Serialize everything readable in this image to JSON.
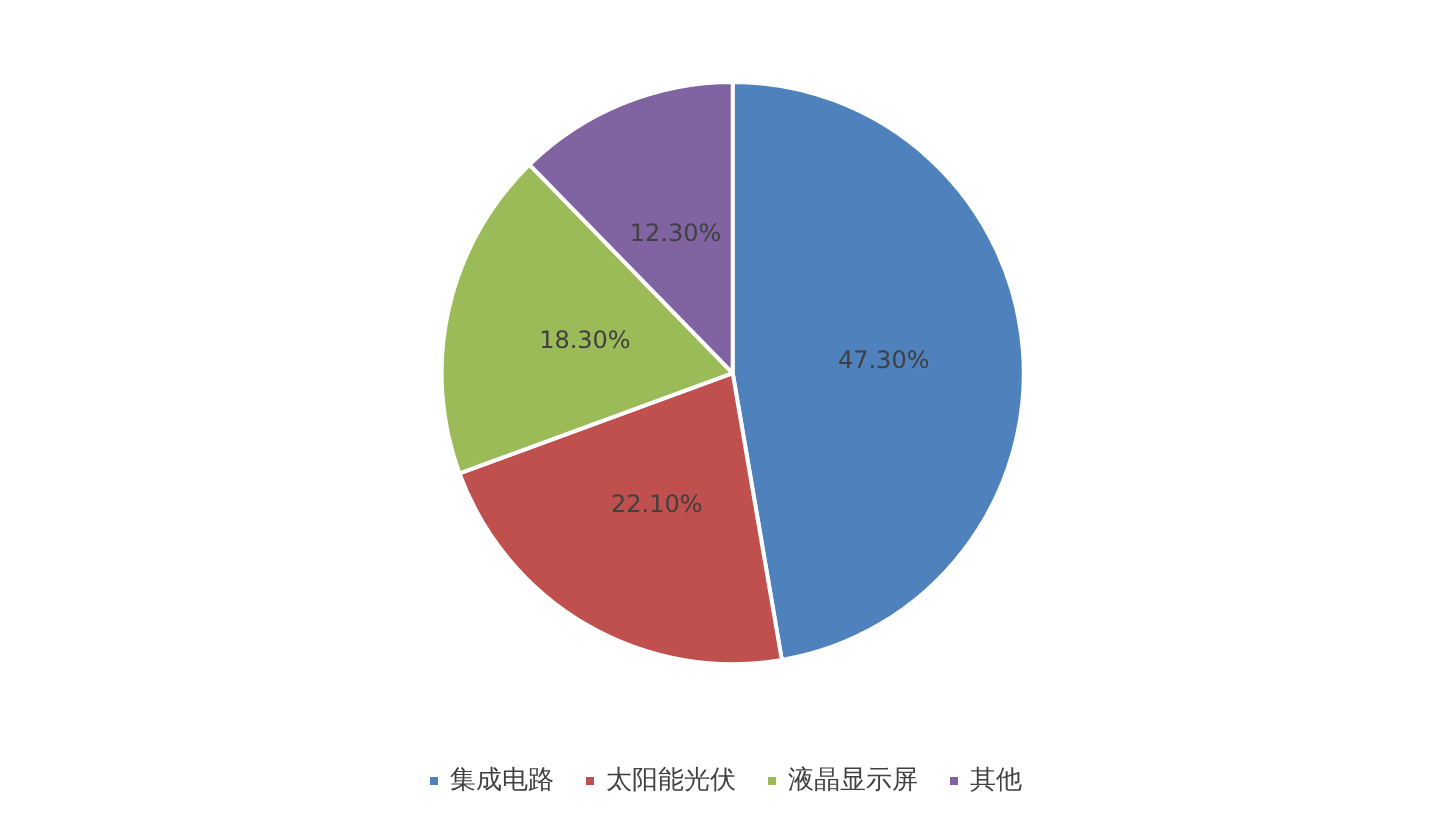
{
  "chart_data": {
    "type": "pie",
    "categories": [
      "集成电路",
      "太阳能光伏",
      "液晶显示屏",
      "其他"
    ],
    "values": [
      47.3,
      22.1,
      18.3,
      12.3
    ],
    "colors": [
      "#4f81bd",
      "#c0504d",
      "#9bbb59",
      "#8064a2"
    ],
    "value_labels": [
      "47.30%",
      "22.10%",
      "18.30%",
      "12.30%"
    ],
    "legend": "bottom"
  }
}
